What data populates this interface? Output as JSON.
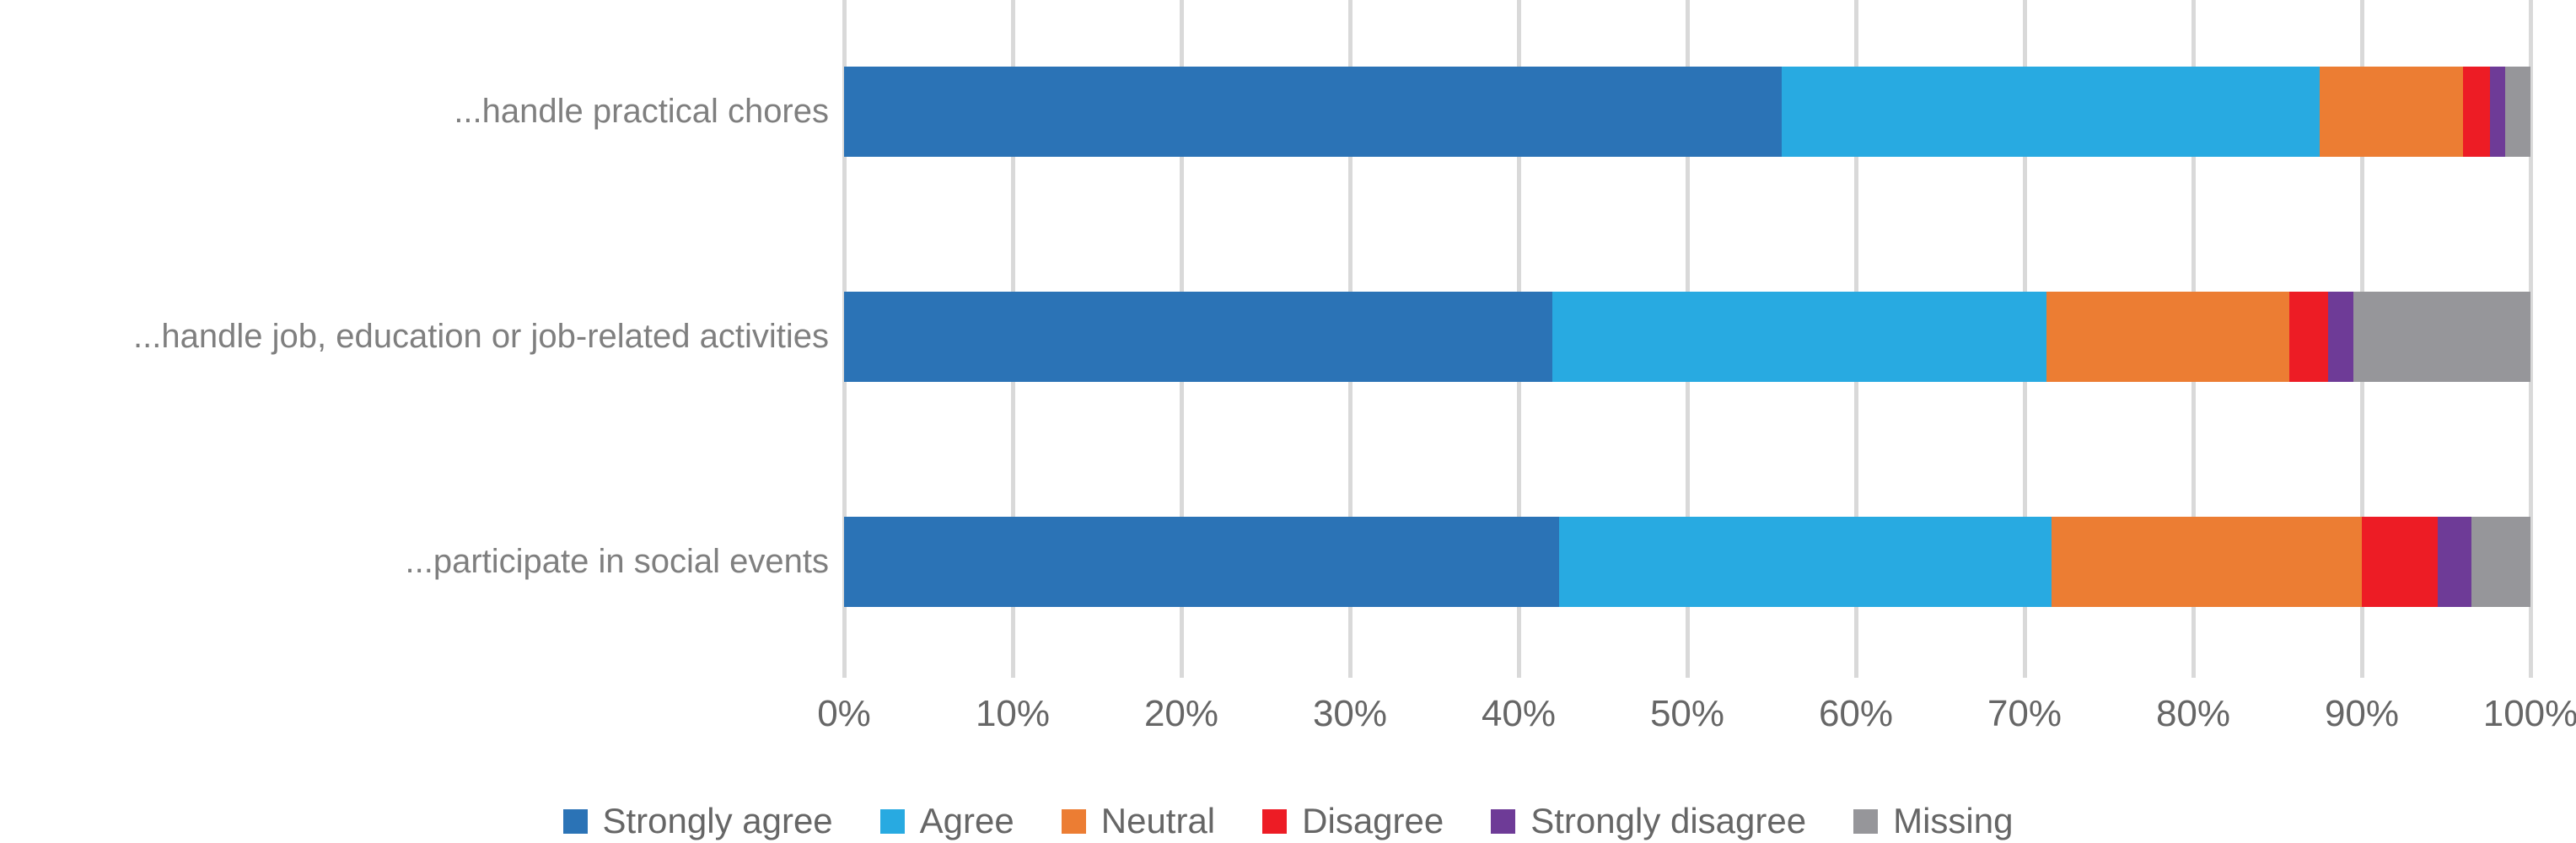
{
  "chart_data": {
    "type": "bar",
    "orientation": "horizontal",
    "stacked": true,
    "title": "",
    "xlabel": "",
    "ylabel": "",
    "categories": [
      "...handle practical chores",
      "...handle job, education or job-related activities",
      "...participate in social events"
    ],
    "series": [
      {
        "name": "Strongly agree",
        "color": "#2B73B6",
        "values": [
          55.6,
          42.0,
          42.4
        ]
      },
      {
        "name": "Agree",
        "color": "#28AAE1",
        "values": [
          31.9,
          29.3,
          29.2
        ]
      },
      {
        "name": "Neutral",
        "color": "#EC7D33",
        "values": [
          8.5,
          14.4,
          18.4
        ]
      },
      {
        "name": "Disagree",
        "color": "#ED1C25",
        "values": [
          1.6,
          2.3,
          4.5
        ]
      },
      {
        "name": "Strongly disagree",
        "color": "#6E3B97",
        "values": [
          0.9,
          1.5,
          2.0
        ]
      },
      {
        "name": "Missing",
        "color": "#96969A",
        "values": [
          1.5,
          10.5,
          3.5
        ]
      }
    ],
    "x_axis": {
      "min": 0,
      "max": 100,
      "tick_labels": [
        "0%",
        "10%",
        "20%",
        "30%",
        "40%",
        "50%",
        "60%",
        "70%",
        "80%",
        "90%",
        "100%"
      ]
    },
    "legend_position": "bottom",
    "grid": true,
    "gridline_color": "#D9D9D9",
    "axis_text_color": "#666666",
    "category_text_color": "#7f7f7f"
  }
}
